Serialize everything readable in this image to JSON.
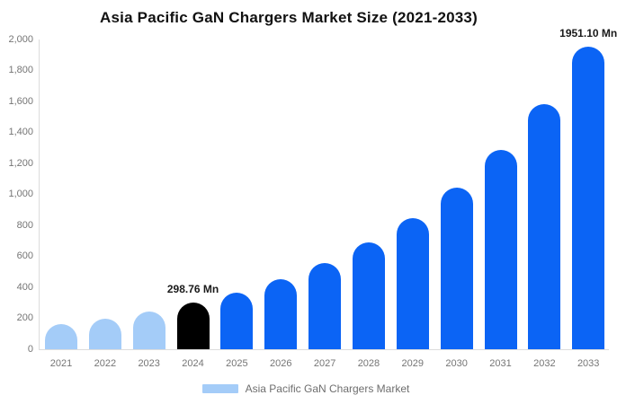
{
  "chart_data": {
    "type": "bar",
    "title": "Asia Pacific GaN Chargers Market Size (2021-2033)",
    "categories": [
      "2021",
      "2022",
      "2023",
      "2024",
      "2025",
      "2026",
      "2027",
      "2028",
      "2029",
      "2030",
      "2031",
      "2032",
      "2033"
    ],
    "values": [
      160,
      197,
      242,
      298.76,
      368,
      453,
      558,
      688,
      847,
      1043,
      1285,
      1583,
      1951.1
    ],
    "bar_colors": [
      "#A4CCF8",
      "#A4CCF8",
      "#A4CCF8",
      "#000000",
      "#0B64F5",
      "#0B64F5",
      "#0B64F5",
      "#0B64F5",
      "#0B64F5",
      "#0B64F5",
      "#0B64F5",
      "#0B64F5",
      "#0B64F5"
    ],
    "xlabel": "",
    "ylabel": "",
    "ylim": [
      0,
      2000
    ],
    "grid": false,
    "yticks": [
      {
        "value": 0,
        "label": "0"
      },
      {
        "value": 200,
        "label": "200"
      },
      {
        "value": 400,
        "label": "400"
      },
      {
        "value": 600,
        "label": "600"
      },
      {
        "value": 800,
        "label": "800"
      },
      {
        "value": 1000,
        "label": "1,000"
      },
      {
        "value": 1200,
        "label": "1,200"
      },
      {
        "value": 1400,
        "label": "1,400"
      },
      {
        "value": 1600,
        "label": "1,600"
      },
      {
        "value": 1800,
        "label": "1,800"
      },
      {
        "value": 2000,
        "label": "2,000"
      }
    ],
    "annotations": [
      {
        "category": "2024",
        "text": "298.76 Mn"
      },
      {
        "category": "2033",
        "text": "1951.10 Mn"
      }
    ],
    "legend": {
      "position": "bottom",
      "label": "Asia Pacific GaN Chargers Market",
      "swatch_color": "#A4CCF8"
    }
  },
  "colors": {
    "light_blue": "#A4CCF8",
    "accent_blue": "#0B64F5",
    "highlight_black": "#000000",
    "axis_text": "#757575",
    "axis_line": "#dcdcdc",
    "value_label_text": "#1a1a1a",
    "background": "#ffffff"
  }
}
